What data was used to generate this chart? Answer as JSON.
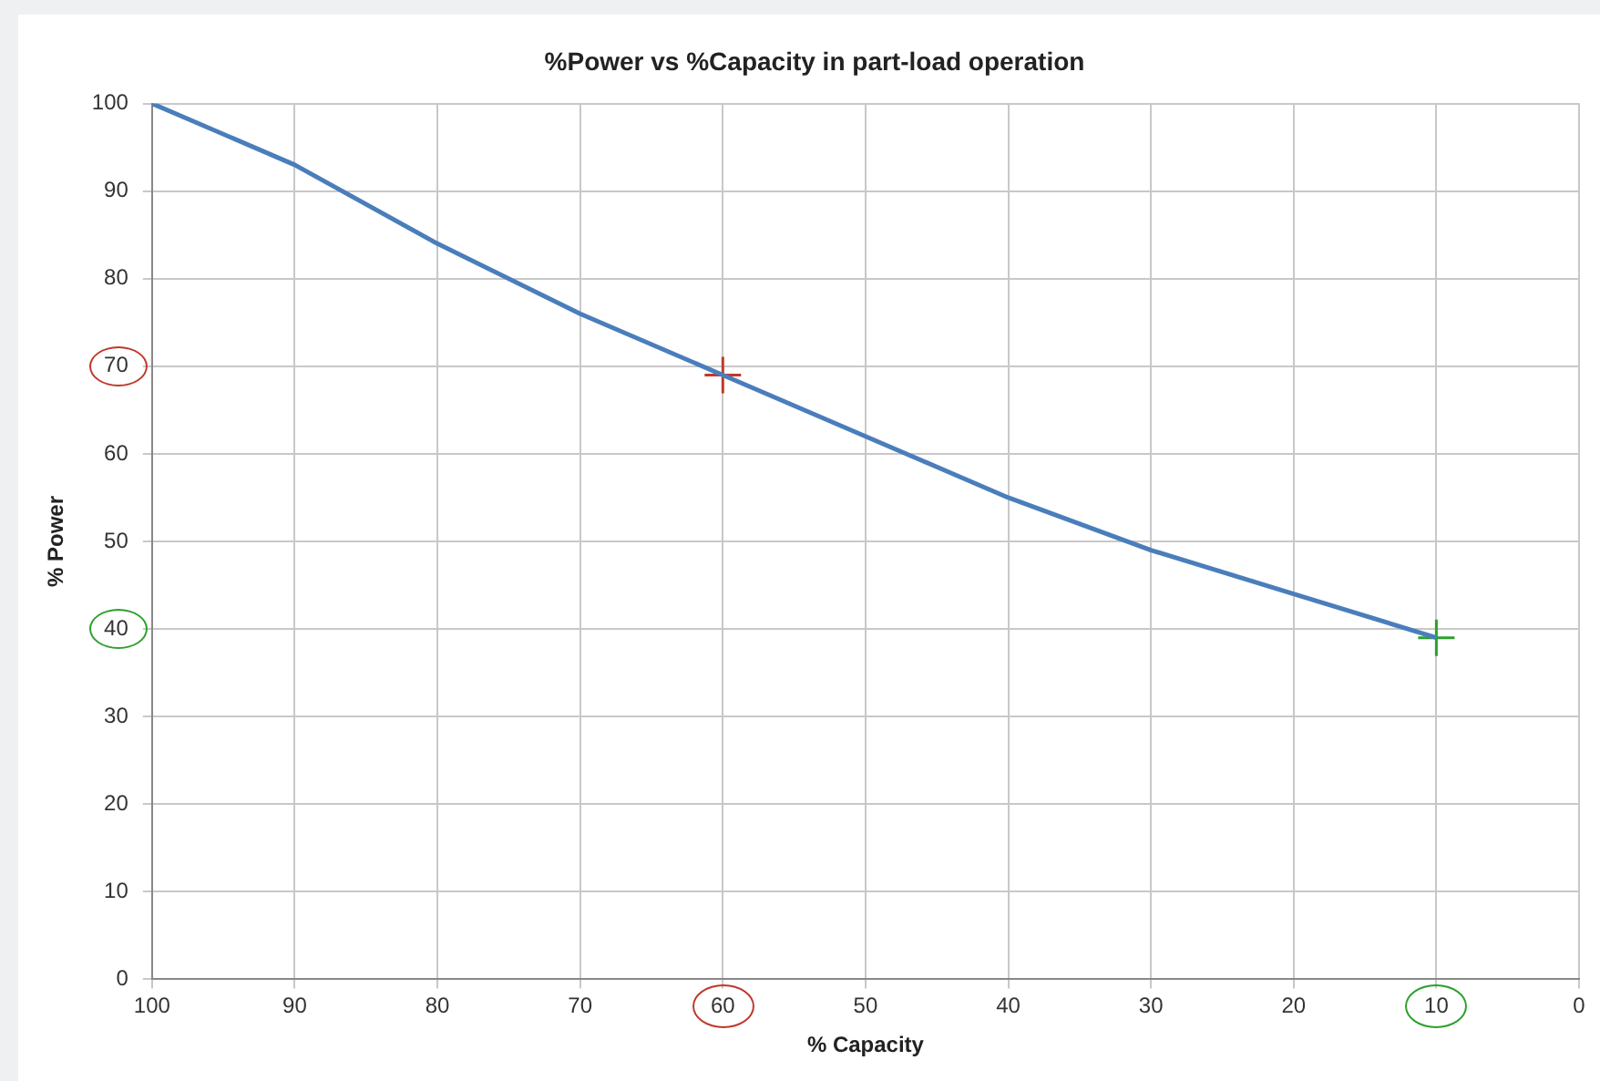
{
  "chart_data": {
    "type": "line",
    "title": "%Power vs %Capacity in part-load operation",
    "xlabel": "% Capacity",
    "ylabel": "% Power",
    "xlim": [
      100,
      0
    ],
    "xticks": [
      100,
      90,
      80,
      70,
      60,
      50,
      40,
      30,
      20,
      10,
      0
    ],
    "ylim": [
      0,
      100
    ],
    "yticks": [
      0,
      10,
      20,
      30,
      40,
      50,
      60,
      70,
      80,
      90,
      100
    ],
    "grid": true,
    "legend": false,
    "series": [
      {
        "type": "line",
        "color": "#4a7ebb",
        "marker": "none",
        "x": [
          100,
          90,
          80,
          70,
          60,
          50,
          40,
          30,
          20,
          10
        ],
        "values": [
          100,
          93,
          84,
          76,
          69,
          62,
          55,
          49,
          44,
          39
        ]
      },
      {
        "type": "scatter",
        "color": "#c0392b",
        "marker": "cross",
        "x": [
          60
        ],
        "values": [
          69
        ]
      },
      {
        "type": "scatter",
        "color": "#2ca02c",
        "marker": "cross",
        "x": [
          10
        ],
        "values": [
          39
        ]
      }
    ]
  }
}
